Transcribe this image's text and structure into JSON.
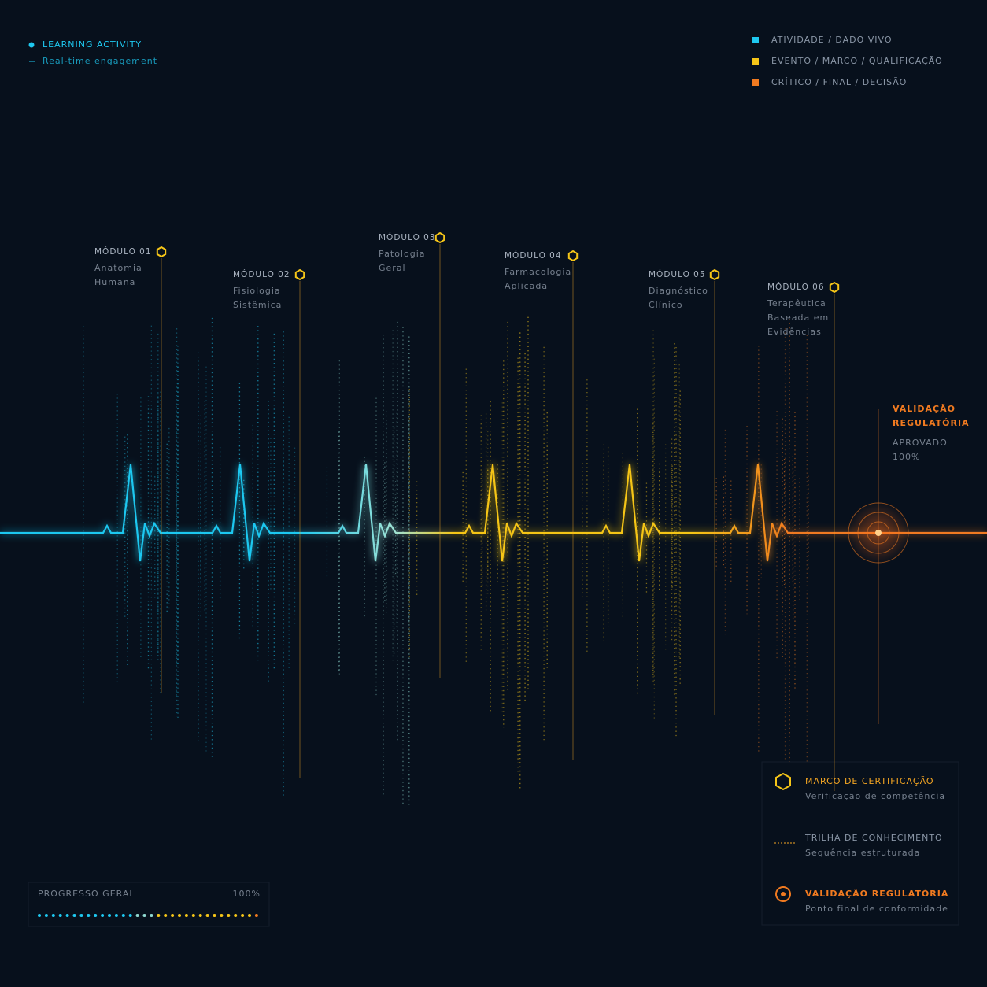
{
  "header": {
    "title": "LEARNING ACTIVITY",
    "subtitle": "Real-time engagement"
  },
  "legend": [
    {
      "label": "ATIVIDADE / DADO VIVO",
      "color": "#1ec8f0"
    },
    {
      "label": "EVENTO / MARCO / QUALIFICAÇÃO",
      "color": "#f5c518"
    },
    {
      "label": "CRÍTICO / FINAL / DECISÃO",
      "color": "#f07a20"
    }
  ],
  "modules": [
    {
      "label": "MÓDULO 01",
      "name": [
        "Anatomia",
        "Humana"
      ]
    },
    {
      "label": "MÓDULO 02",
      "name": [
        "Fisiologia",
        "Sistêmica"
      ]
    },
    {
      "label": "MÓDULO 03",
      "name": [
        "Patologia",
        "Geral"
      ]
    },
    {
      "label": "MÓDULO 04",
      "name": [
        "Farmacologia",
        "Aplicada"
      ]
    },
    {
      "label": "MÓDULO 05",
      "name": [
        "Diagnóstico",
        "Clínico"
      ]
    },
    {
      "label": "MÓDULO 06",
      "name": [
        "Terapêutica",
        "Baseada em",
        "Evidências"
      ]
    }
  ],
  "validation": {
    "title": [
      "VALIDAÇÃO",
      "REGULATÓRIA"
    ],
    "status": "APROVADO",
    "value": "100%"
  },
  "key": [
    {
      "title": "MARCO DE CERTIFICAÇÃO",
      "subtitle": "Verificação de competência"
    },
    {
      "title": "TRILHA DE CONHECIMENTO",
      "subtitle": "Sequência estruturada"
    },
    {
      "title": "VALIDAÇÃO REGULATÓRIA",
      "subtitle": "Ponto final de conformidade"
    }
  ],
  "progress": {
    "label": "PROGRESSO GERAL",
    "value": "100%"
  }
}
